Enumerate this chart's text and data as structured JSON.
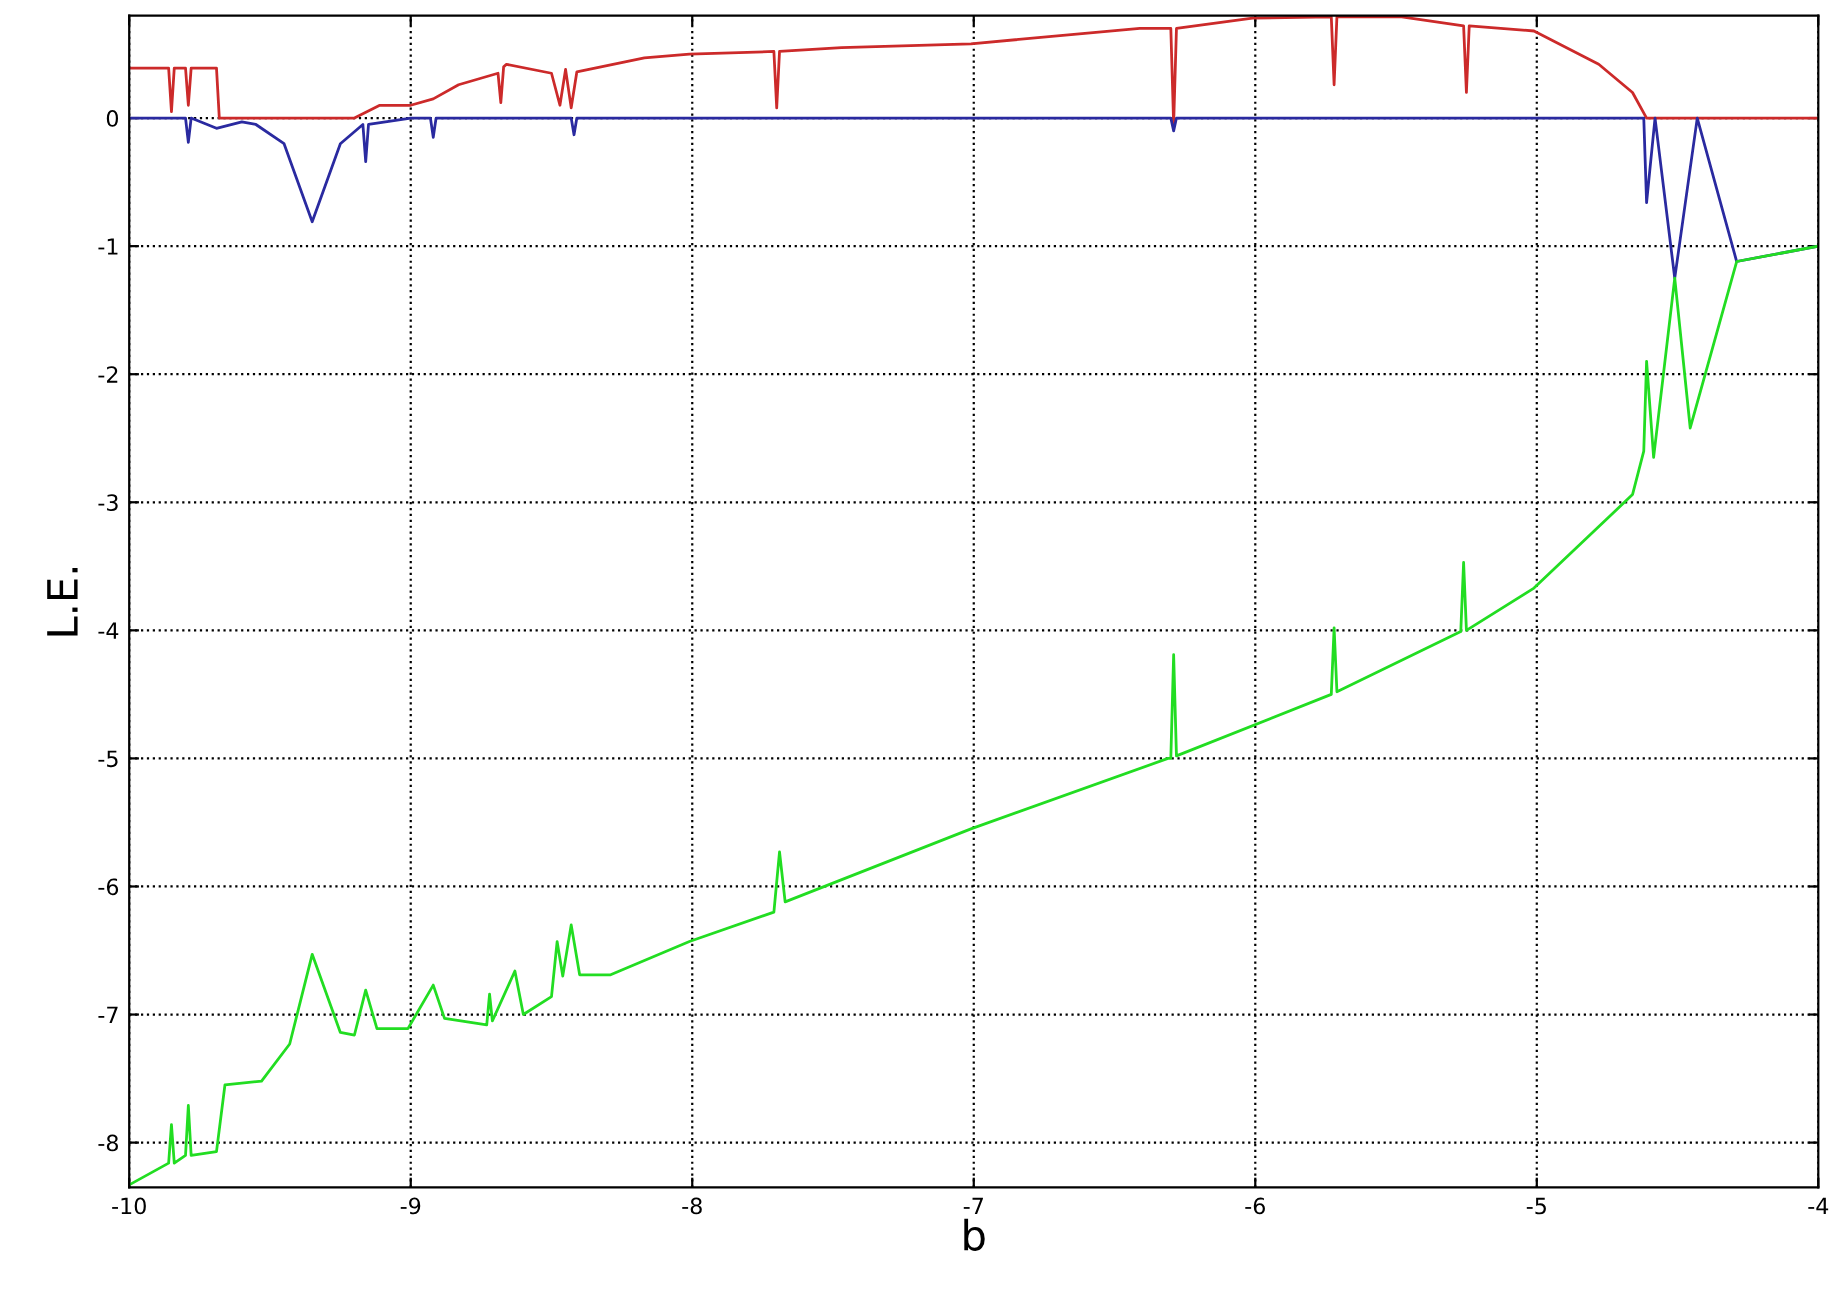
{
  "chart_data": {
    "type": "line",
    "xlabel": "b",
    "ylabel": "L.E.",
    "xlim": [
      -10,
      -4
    ],
    "ylim": [
      -8.35,
      0.8
    ],
    "xticks": [
      -10,
      -9,
      -8,
      -7,
      -6,
      -5,
      -4
    ],
    "yticks": [
      -8,
      -7,
      -6,
      -5,
      -4,
      -3,
      -2,
      -1,
      0
    ],
    "grid": true,
    "marker": "none",
    "line_style": "solid",
    "series": [
      {
        "color": "#cc2a2a",
        "x": [
          -10,
          -9.86,
          -9.85,
          -9.84,
          -9.8,
          -9.79,
          -9.78,
          -9.69,
          -9.68,
          -9.5,
          -9.35,
          -9.2,
          -9.11,
          -9.0,
          -8.92,
          -8.83,
          -8.69,
          -8.68,
          -8.67,
          -8.66,
          -8.5,
          -8.47,
          -8.45,
          -8.43,
          -8.41,
          -8.17,
          -8.01,
          -7.71,
          -7.7,
          -7.69,
          -7.47,
          -7.01,
          -6.41,
          -6.3,
          -6.29,
          -6.28,
          -6.01,
          -5.73,
          -5.72,
          -5.71,
          -5.48,
          -5.26,
          -5.25,
          -5.24,
          -5.01,
          -4.78,
          -4.66,
          -4.61,
          -4.0
        ],
        "values": [
          0.39,
          0.39,
          0.05,
          0.39,
          0.39,
          0.1,
          0.39,
          0.39,
          0.0,
          0.0,
          0.0,
          0.0,
          0.1,
          0.1,
          0.15,
          0.26,
          0.35,
          0.12,
          0.4,
          0.42,
          0.35,
          0.1,
          0.38,
          0.08,
          0.36,
          0.47,
          0.5,
          0.52,
          0.08,
          0.52,
          0.55,
          0.58,
          0.7,
          0.7,
          -0.05,
          0.7,
          0.78,
          0.79,
          0.26,
          0.79,
          0.79,
          0.72,
          0.2,
          0.72,
          0.68,
          0.42,
          0.2,
          0.0,
          0.0
        ]
      },
      {
        "color": "#2a2aa0",
        "x": [
          -10,
          -9.8,
          -9.79,
          -9.78,
          -9.69,
          -9.6,
          -9.55,
          -9.45,
          -9.35,
          -9.25,
          -9.17,
          -9.16,
          -9.15,
          -9.0,
          -8.93,
          -8.92,
          -8.91,
          -8.43,
          -8.42,
          -8.41,
          -6.3,
          -6.29,
          -6.28,
          -4.62,
          -4.61,
          -4.58,
          -4.51,
          -4.43,
          -4.29,
          -4.0
        ],
        "values": [
          0,
          0,
          -0.19,
          0,
          -0.08,
          -0.03,
          -0.05,
          -0.2,
          -0.81,
          -0.2,
          -0.05,
          -0.34,
          -0.05,
          0,
          0,
          -0.15,
          0,
          0,
          -0.13,
          0,
          0,
          -0.1,
          0,
          0,
          -0.66,
          0,
          -1.25,
          0,
          -1.12,
          -1.0
        ]
      },
      {
        "color": "#22dd22",
        "x": [
          -10,
          -9.86,
          -9.85,
          -9.84,
          -9.8,
          -9.79,
          -9.78,
          -9.69,
          -9.66,
          -9.53,
          -9.43,
          -9.35,
          -9.25,
          -9.2,
          -9.16,
          -9.12,
          -9.01,
          -8.92,
          -8.88,
          -8.73,
          -8.72,
          -8.71,
          -8.63,
          -8.6,
          -8.5,
          -8.48,
          -8.46,
          -8.43,
          -8.4,
          -8.29,
          -8.01,
          -7.71,
          -7.69,
          -7.67,
          -7.01,
          -6.31,
          -6.3,
          -6.29,
          -6.28,
          -5.73,
          -5.72,
          -5.71,
          -5.27,
          -5.26,
          -5.25,
          -5.01,
          -4.66,
          -4.62,
          -4.61,
          -4.585,
          -4.51,
          -4.455,
          -4.29,
          -4.0
        ],
        "values": [
          -8.33,
          -8.16,
          -7.86,
          -8.16,
          -8.1,
          -7.71,
          -8.1,
          -8.07,
          -7.55,
          -7.52,
          -7.23,
          -6.53,
          -7.14,
          -7.16,
          -6.81,
          -7.11,
          -7.11,
          -6.77,
          -7.03,
          -7.08,
          -6.84,
          -7.05,
          -6.66,
          -7.0,
          -6.86,
          -6.43,
          -6.7,
          -6.3,
          -6.69,
          -6.69,
          -6.43,
          -6.2,
          -5.73,
          -6.12,
          -5.55,
          -5.0,
          -5.0,
          -4.19,
          -4.98,
          -4.5,
          -3.98,
          -4.48,
          -4.01,
          -3.47,
          -4.0,
          -3.67,
          -2.94,
          -2.6,
          -1.9,
          -2.65,
          -1.25,
          -2.42,
          -1.12,
          -1.0
        ]
      }
    ]
  }
}
